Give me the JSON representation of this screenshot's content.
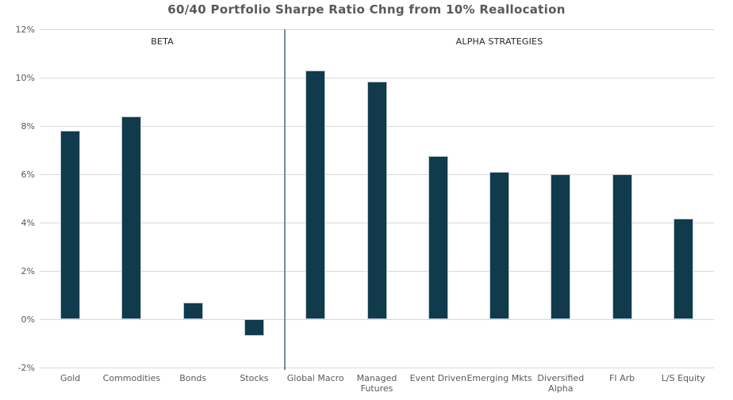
{
  "chart_data": {
    "type": "bar",
    "title": "60/40 Portfolio Sharpe Ratio Chng from 10% Reallocation",
    "xlabel": "",
    "ylabel": "",
    "ylim": [
      -2,
      12
    ],
    "ytick_step": 2,
    "yticks": [
      "12%",
      "10%",
      "8%",
      "6%",
      "4%",
      "2%",
      "0%",
      "-2%"
    ],
    "grid": true,
    "legend": false,
    "groups": [
      {
        "name": "BETA",
        "categories": [
          "Gold",
          "Commodities",
          "Bonds",
          "Stocks"
        ],
        "values": [
          7.8,
          8.4,
          0.7,
          -0.7
        ]
      },
      {
        "name": "ALPHA STRATEGIES",
        "categories": [
          "Global Macro",
          "Managed Futures",
          "Event Driven",
          "Emerging Mkts",
          "Diversified Alpha",
          "FI Arb",
          "L/S Equity"
        ],
        "values": [
          10.3,
          9.85,
          6.75,
          6.1,
          6.0,
          6.0,
          4.15
        ]
      }
    ],
    "colors": {
      "bar": "#113a4c",
      "bar_border": "#b9ccd3",
      "gridline": "#d9d9d9",
      "divider": "#6e8e98",
      "title": "#595959",
      "tick_label": "#595959",
      "section_label": "#262626",
      "background": "#ffffff"
    }
  }
}
